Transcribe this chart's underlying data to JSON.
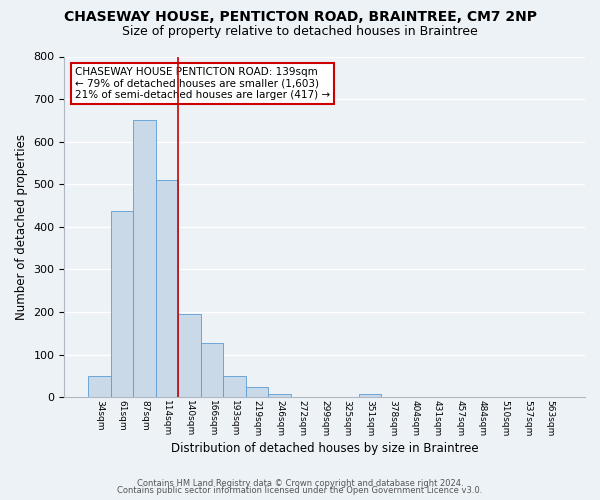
{
  "title": "CHASEWAY HOUSE, PENTICTON ROAD, BRAINTREE, CM7 2NP",
  "subtitle": "Size of property relative to detached houses in Braintree",
  "xlabel": "Distribution of detached houses by size in Braintree",
  "ylabel": "Number of detached properties",
  "bin_labels": [
    "34sqm",
    "61sqm",
    "87sqm",
    "114sqm",
    "140sqm",
    "166sqm",
    "193sqm",
    "219sqm",
    "246sqm",
    "272sqm",
    "299sqm",
    "325sqm",
    "351sqm",
    "378sqm",
    "404sqm",
    "431sqm",
    "457sqm",
    "484sqm",
    "510sqm",
    "537sqm",
    "563sqm"
  ],
  "bar_heights": [
    50,
    437,
    651,
    510,
    195,
    127,
    50,
    25,
    8,
    0,
    0,
    0,
    7,
    0,
    0,
    0,
    0,
    0,
    0,
    0,
    0
  ],
  "bar_color": "#c9d9e8",
  "bar_edge_color": "#5b9bd5",
  "vline_color": "#cc0000",
  "ylim": [
    0,
    800
  ],
  "yticks": [
    0,
    100,
    200,
    300,
    400,
    500,
    600,
    700,
    800
  ],
  "annotation_title": "CHASEWAY HOUSE PENTICTON ROAD: 139sqm",
  "annotation_line1": "← 79% of detached houses are smaller (1,603)",
  "annotation_line2": "21% of semi-detached houses are larger (417) →",
  "annotation_box_color": "#ffffff",
  "annotation_box_edge": "#cc0000",
  "footer1": "Contains HM Land Registry data © Crown copyright and database right 2024.",
  "footer2": "Contains public sector information licensed under the Open Government Licence v3.0.",
  "bg_color": "#edf2f7",
  "grid_color": "#ffffff",
  "title_fontsize": 10,
  "subtitle_fontsize": 9
}
